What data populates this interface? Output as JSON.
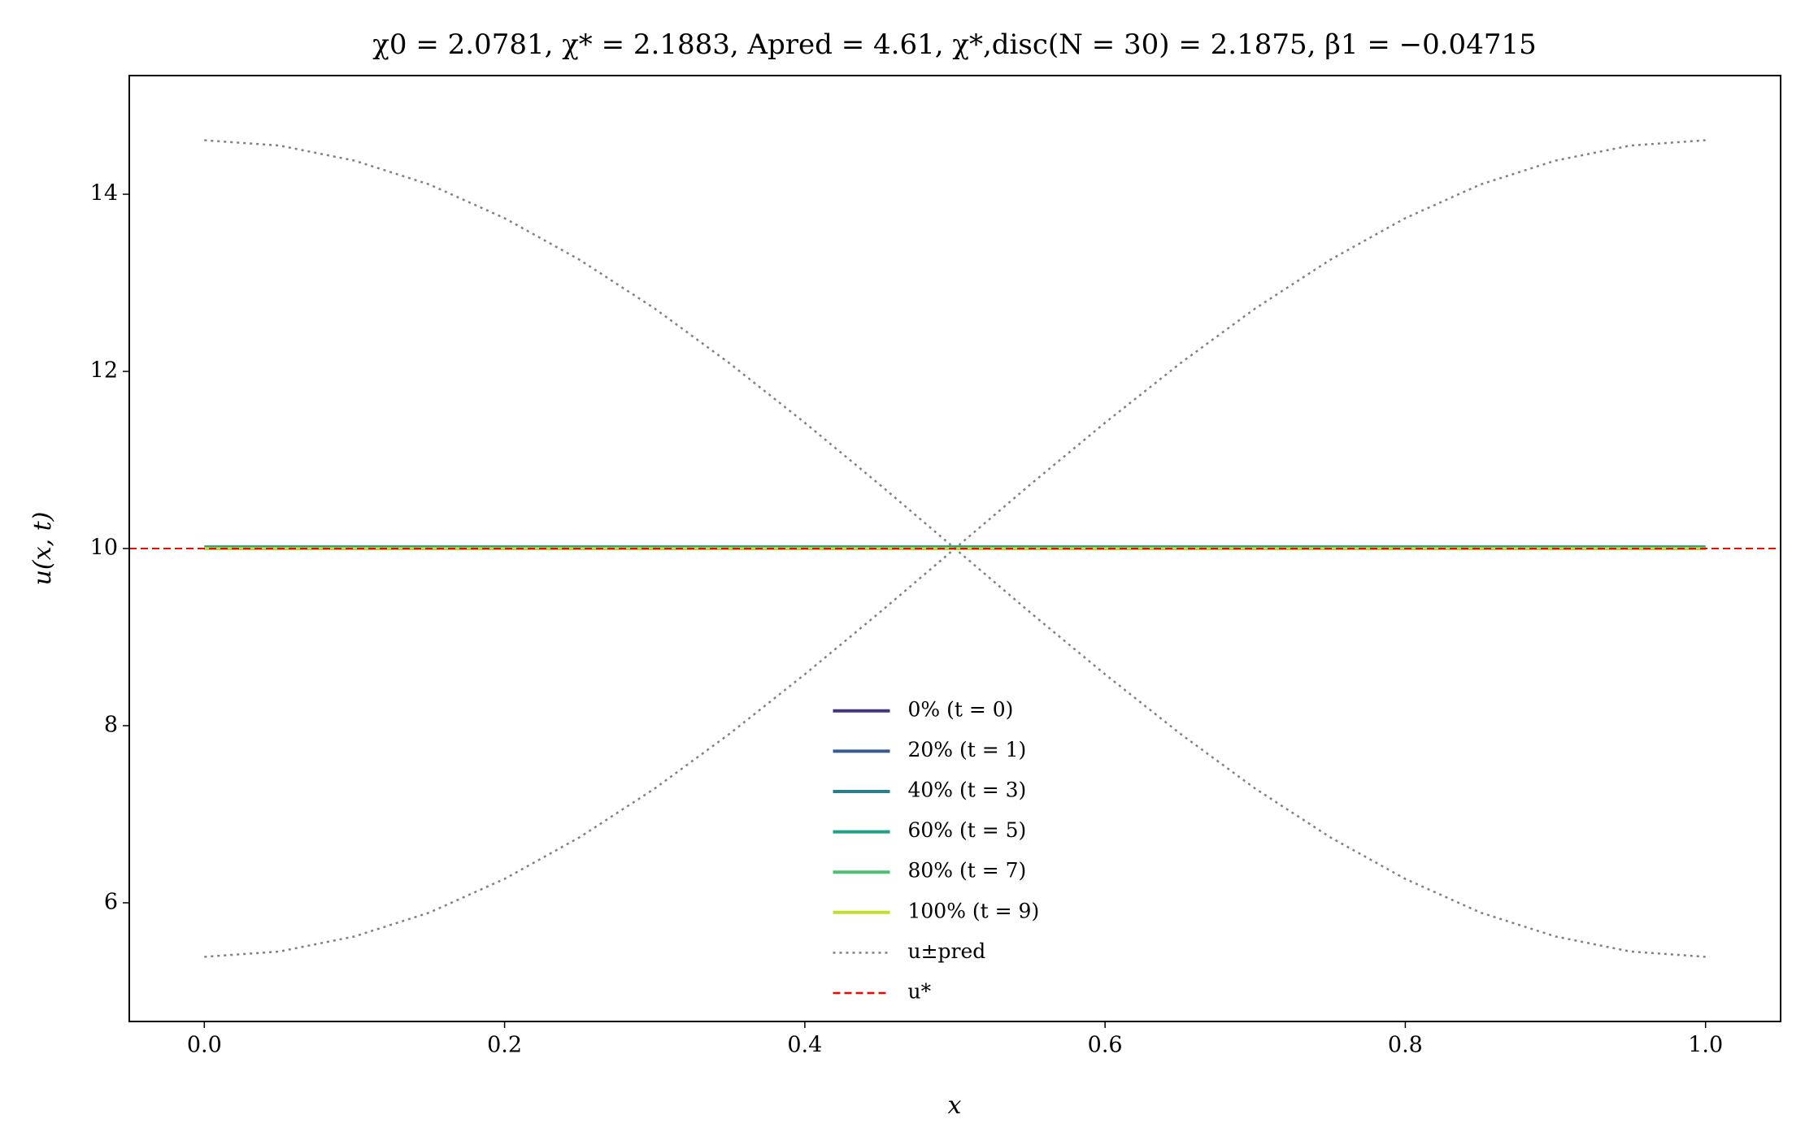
{
  "chart_data": {
    "type": "line",
    "title": "χ0 = 2.0781, χ* = 2.1883, Apred = 4.61, χ*,disc(N = 30) = 2.1875, β1 = −0.04715",
    "xlabel": "x",
    "ylabel": "u(x, t)",
    "xlim": [
      -0.05,
      1.05
    ],
    "ylim": [
      4.66,
      15.34
    ],
    "xticks": [
      {
        "value": 0,
        "label": "0.0"
      },
      0.2,
      0.4,
      0.6,
      0.8,
      {
        "value": 1,
        "label": "1.0"
      }
    ],
    "yticks": [
      6,
      8,
      10,
      12,
      14
    ],
    "grid": false,
    "legend": "lower center",
    "series": [
      {
        "name": "0% (t = 0)",
        "color": "#46327e",
        "style": "solid",
        "x": [
          0,
          1
        ],
        "values": [
          10,
          10
        ]
      },
      {
        "name": "20% (t = 1)",
        "color": "#365c8d",
        "style": "solid",
        "x": [
          0,
          1
        ],
        "values": [
          10,
          10
        ]
      },
      {
        "name": "40% (t = 3)",
        "color": "#277f8e",
        "style": "solid",
        "x": [
          0,
          1
        ],
        "values": [
          10,
          10
        ]
      },
      {
        "name": "60% (t = 5)",
        "color": "#1fa187",
        "style": "solid",
        "x": [
          0,
          1
        ],
        "values": [
          10.02,
          10.02
        ]
      },
      {
        "name": "80% (t = 7)",
        "color": "#4ac16d",
        "style": "solid",
        "x": [
          0,
          1
        ],
        "values": [
          10,
          10
        ]
      },
      {
        "name": "100% (t = 9)",
        "color": "#c0df25",
        "style": "solid",
        "x": [
          0,
          1
        ],
        "values": [
          10,
          10
        ]
      },
      {
        "name": "u±pred",
        "color": "#808080",
        "style": "dotted",
        "x": [
          0,
          0.05,
          0.1,
          0.15,
          0.2,
          0.25,
          0.3,
          0.35,
          0.4,
          0.45,
          0.5,
          0.55,
          0.6,
          0.65,
          0.7,
          0.75,
          0.8,
          0.85,
          0.9,
          0.95,
          1
        ],
        "values": [
          14.61,
          14.55,
          14.38,
          14.11,
          13.73,
          13.26,
          12.71,
          12.09,
          11.42,
          10.72,
          10.0,
          9.28,
          8.58,
          7.91,
          7.29,
          6.74,
          6.27,
          5.89,
          5.62,
          5.45,
          5.39
        ],
        "values2": [
          5.39,
          5.45,
          5.62,
          5.89,
          6.27,
          6.74,
          7.29,
          7.91,
          8.58,
          9.28,
          10.0,
          10.72,
          11.42,
          12.09,
          12.71,
          13.26,
          13.73,
          14.11,
          14.38,
          14.55,
          14.61
        ]
      },
      {
        "name": "u*",
        "color": "#ff0000",
        "style": "dashed",
        "value": 10
      }
    ]
  }
}
